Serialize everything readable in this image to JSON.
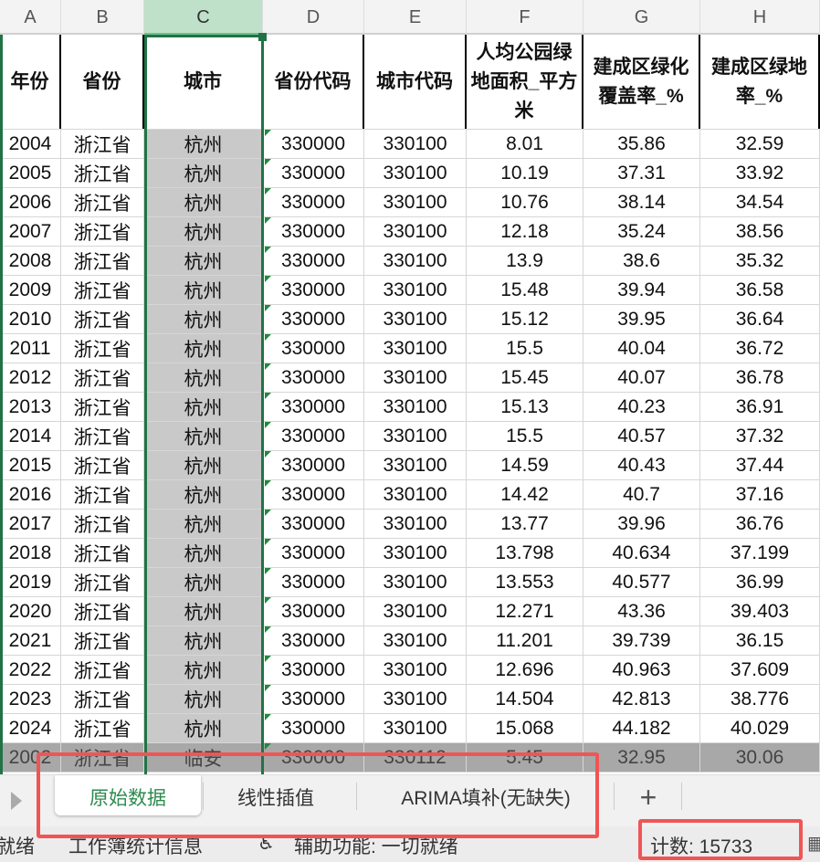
{
  "columns": [
    "A",
    "B",
    "C",
    "D",
    "E",
    "F",
    "G",
    "H"
  ],
  "selected_column": "C",
  "headers": [
    "年份",
    "省份",
    "城市",
    "省份代码",
    "城市代码",
    "人均公园绿地面积_平方米",
    "建成区绿化覆盖率_%",
    "建成区绿地率_%"
  ],
  "rows": [
    [
      "2004",
      "浙江省",
      "杭州",
      "330000",
      "330100",
      "8.01",
      "35.86",
      "32.59"
    ],
    [
      "2005",
      "浙江省",
      "杭州",
      "330000",
      "330100",
      "10.19",
      "37.31",
      "33.92"
    ],
    [
      "2006",
      "浙江省",
      "杭州",
      "330000",
      "330100",
      "10.76",
      "38.14",
      "34.54"
    ],
    [
      "2007",
      "浙江省",
      "杭州",
      "330000",
      "330100",
      "12.18",
      "35.24",
      "38.56"
    ],
    [
      "2008",
      "浙江省",
      "杭州",
      "330000",
      "330100",
      "13.9",
      "38.6",
      "35.32"
    ],
    [
      "2009",
      "浙江省",
      "杭州",
      "330000",
      "330100",
      "15.48",
      "39.94",
      "36.58"
    ],
    [
      "2010",
      "浙江省",
      "杭州",
      "330000",
      "330100",
      "15.12",
      "39.95",
      "36.64"
    ],
    [
      "2011",
      "浙江省",
      "杭州",
      "330000",
      "330100",
      "15.5",
      "40.04",
      "36.72"
    ],
    [
      "2012",
      "浙江省",
      "杭州",
      "330000",
      "330100",
      "15.45",
      "40.07",
      "36.78"
    ],
    [
      "2013",
      "浙江省",
      "杭州",
      "330000",
      "330100",
      "15.13",
      "40.23",
      "36.91"
    ],
    [
      "2014",
      "浙江省",
      "杭州",
      "330000",
      "330100",
      "15.5",
      "40.57",
      "37.32"
    ],
    [
      "2015",
      "浙江省",
      "杭州",
      "330000",
      "330100",
      "14.59",
      "40.43",
      "37.44"
    ],
    [
      "2016",
      "浙江省",
      "杭州",
      "330000",
      "330100",
      "14.42",
      "40.7",
      "37.16"
    ],
    [
      "2017",
      "浙江省",
      "杭州",
      "330000",
      "330100",
      "13.77",
      "39.96",
      "36.76"
    ],
    [
      "2018",
      "浙江省",
      "杭州",
      "330000",
      "330100",
      "13.798",
      "40.634",
      "37.199"
    ],
    [
      "2019",
      "浙江省",
      "杭州",
      "330000",
      "330100",
      "13.553",
      "40.577",
      "36.99"
    ],
    [
      "2020",
      "浙江省",
      "杭州",
      "330000",
      "330100",
      "12.271",
      "43.36",
      "39.403"
    ],
    [
      "2021",
      "浙江省",
      "杭州",
      "330000",
      "330100",
      "11.201",
      "39.739",
      "36.15"
    ],
    [
      "2022",
      "浙江省",
      "杭州",
      "330000",
      "330100",
      "12.696",
      "40.963",
      "37.609"
    ],
    [
      "2023",
      "浙江省",
      "杭州",
      "330000",
      "330100",
      "14.504",
      "42.813",
      "38.776"
    ],
    [
      "2024",
      "浙江省",
      "杭州",
      "330000",
      "330100",
      "15.068",
      "44.182",
      "40.029"
    ],
    [
      "2002",
      "浙江省",
      "临安",
      "330000",
      "330112",
      "5.45",
      "32.95",
      "30.06"
    ]
  ],
  "sheet_tabs": [
    "原始数据",
    "线性插值",
    "ARIMA填补(无缺失)"
  ],
  "active_tab": "原始数据",
  "add_sheet": "+",
  "status": {
    "ready": "就绪",
    "workbook_stats": "工作簿统计信息",
    "accessibility": "辅助功能: 一切就绪",
    "count": "计数: 15733"
  },
  "colors": {
    "accent": "#217346",
    "highlight": "#f05555"
  }
}
